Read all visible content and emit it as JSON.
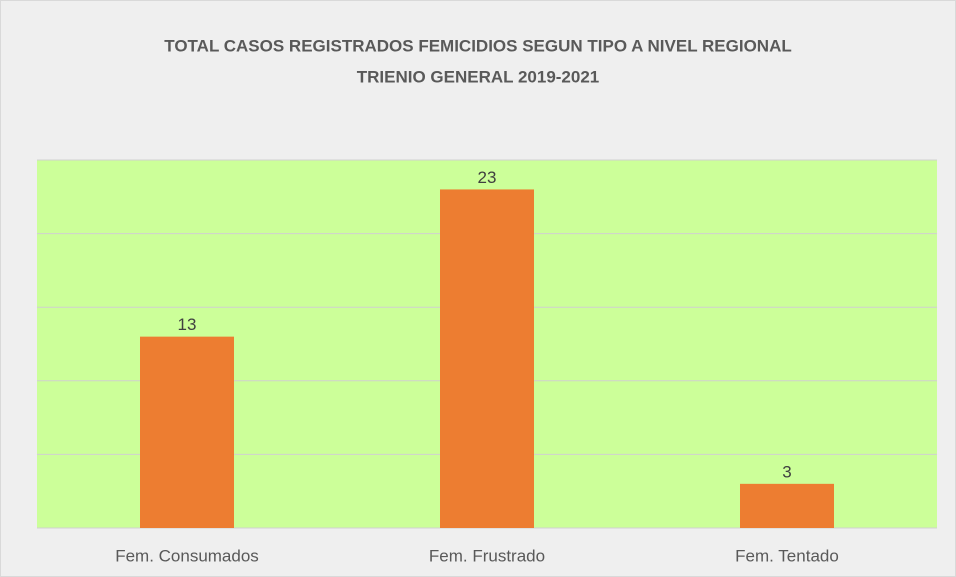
{
  "chart_data": {
    "type": "bar",
    "title": [
      "TOTAL CASOS REGISTRADOS FEMICIDIOS SEGUN TIPO A NIVEL REGIONAL",
      "TRIENIO GENERAL 2019-2021"
    ],
    "categories": [
      "Fem. Consumados",
      "Fem. Frustrado",
      "Fem. Tentado"
    ],
    "values": [
      13,
      23,
      3
    ],
    "color": "#ed7d31",
    "plot_background": "#ccff99",
    "ylim": [
      0,
      25
    ],
    "yticks": [
      0,
      5,
      10,
      15,
      20,
      25
    ],
    "grid": true
  }
}
